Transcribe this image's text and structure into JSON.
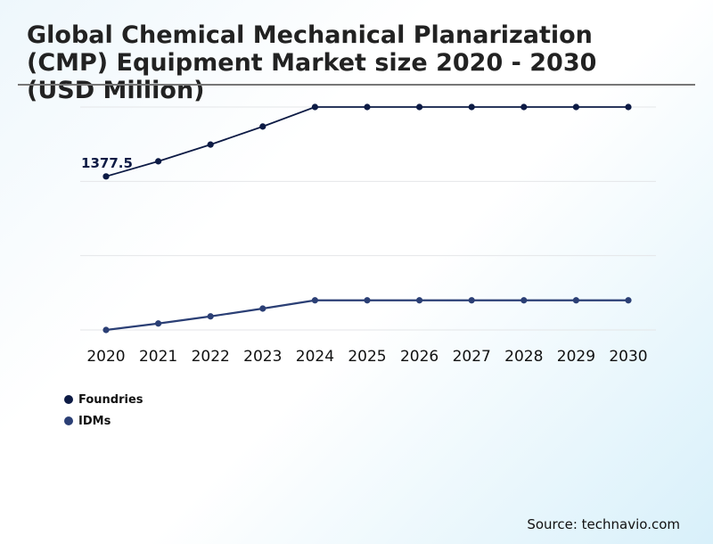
{
  "chart_data": {
    "type": "line",
    "title": "Global Chemical Mechanical Planarization (CMP) Equipment Market size 2020 - 2030 (USD Million)",
    "categories": [
      "2020",
      "2021",
      "2022",
      "2023",
      "2024",
      "2025",
      "2026",
      "2027",
      "2028",
      "2029",
      "2030"
    ],
    "series": [
      {
        "name": "Foundries",
        "color": "#0d1b45",
        "values": [
          1377.5,
          1513,
          1663,
          1825,
          2000,
          2000,
          2000,
          2000,
          2000,
          2000,
          2000
        ]
      },
      {
        "name": "IDMs",
        "color": "#2b3f75",
        "values": [
          0,
          58,
          122,
          192,
          266,
          266,
          266,
          266,
          266,
          266,
          266
        ]
      }
    ],
    "data_labels": [
      {
        "series": "Foundries",
        "category": "2020",
        "text": "1377.5"
      }
    ],
    "ylim": [
      0,
      2000
    ],
    "y_gridlines": 4,
    "y_tick_labels_shown": false,
    "grid": true,
    "legend": "bottom-left"
  },
  "source": "Source: technavio.com"
}
